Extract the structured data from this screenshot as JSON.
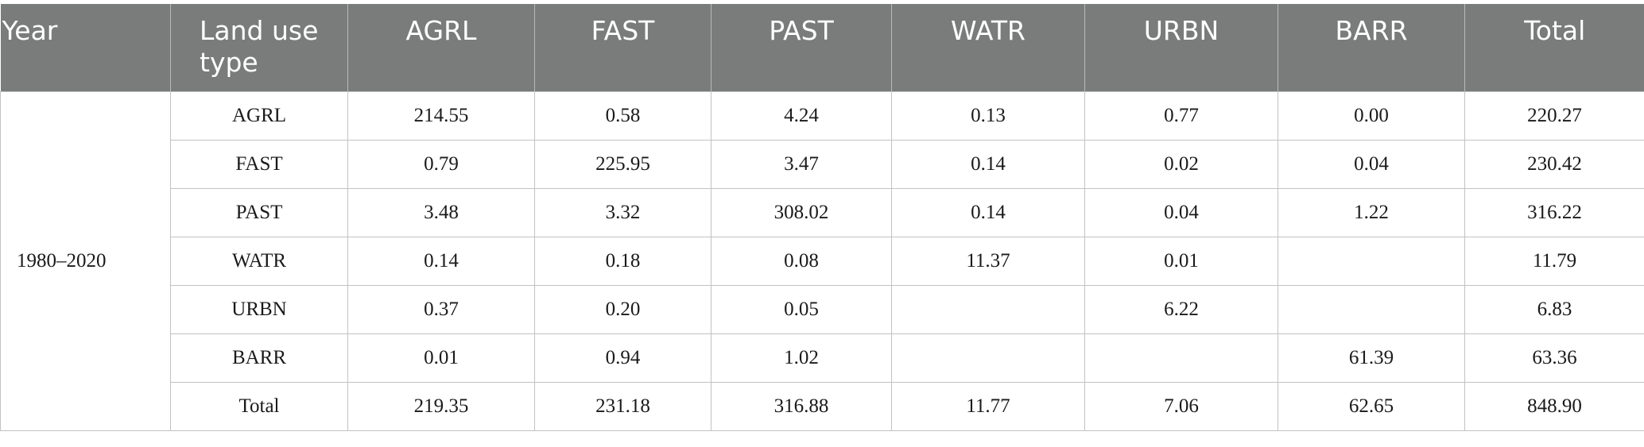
{
  "header": {
    "year": "Year",
    "land_use_type": "Land use type",
    "columns": [
      "AGRL",
      "FAST",
      "PAST",
      "WATR",
      "URBN",
      "BARR",
      "Total"
    ]
  },
  "period": "1980–2020",
  "rows": [
    {
      "label": "AGRL",
      "cells": [
        "214.55",
        "0.58",
        "4.24",
        "0.13",
        "0.77",
        "0.00",
        "220.27"
      ]
    },
    {
      "label": "FAST",
      "cells": [
        "0.79",
        "225.95",
        "3.47",
        "0.14",
        "0.02",
        "0.04",
        "230.42"
      ]
    },
    {
      "label": "PAST",
      "cells": [
        "3.48",
        "3.32",
        "308.02",
        "0.14",
        "0.04",
        "1.22",
        "316.22"
      ]
    },
    {
      "label": "WATR",
      "cells": [
        "0.14",
        "0.18",
        "0.08",
        "11.37",
        "0.01",
        "",
        "11.79"
      ]
    },
    {
      "label": "URBN",
      "cells": [
        "0.37",
        "0.20",
        "0.05",
        "",
        "6.22",
        "",
        "6.83"
      ]
    },
    {
      "label": "BARR",
      "cells": [
        "0.01",
        "0.94",
        "1.02",
        "",
        "",
        "61.39",
        "63.36"
      ]
    },
    {
      "label": "Total",
      "cells": [
        "219.35",
        "231.18",
        "316.88",
        "11.77",
        "7.06",
        "62.65",
        "848.90"
      ]
    }
  ]
}
